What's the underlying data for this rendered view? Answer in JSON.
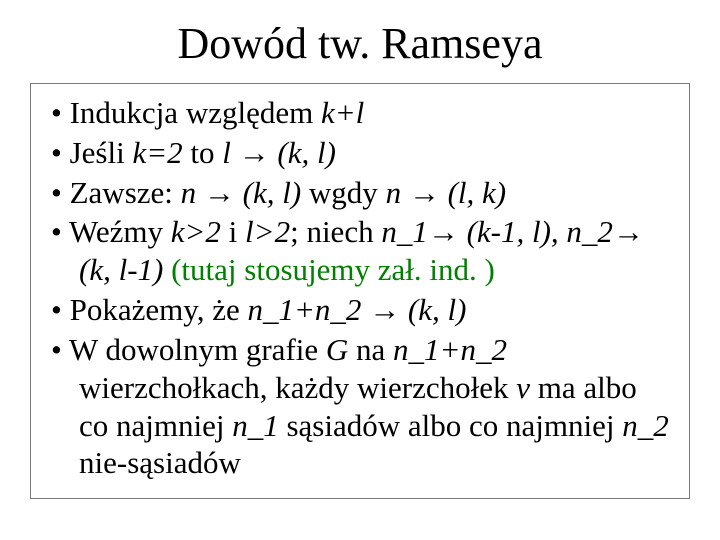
{
  "title": "Dowód tw. Ramseya",
  "text_color": "#000000",
  "green_color": "#008000",
  "border_color": "#7a7a7a",
  "background": "#ffffff",
  "title_fontsize": 44,
  "body_fontsize": 31,
  "bullets": {
    "b1": {
      "t1": "Indukcja względem ",
      "it1": "k+l"
    },
    "b2": {
      "t1": "Jeśli ",
      "it1": "k=2",
      "t2": " to ",
      "it2": "l ",
      "arrow": "→",
      "it3": " (k, l)"
    },
    "b3": {
      "t1": "Zawsze:  ",
      "it1": "n ",
      "arrow1": "→",
      "it2": " (k, l)",
      "t2": " wgdy ",
      "it3": "n ",
      "arrow2": "→",
      "it4": " (l, k)"
    },
    "b4": {
      "t1": "Weźmy ",
      "it1": "k>2",
      "t2": " i ",
      "it2": "l>2",
      "t3": "; niech ",
      "it3": "n_1",
      "arrow1": "→",
      "it4": " (k-1, l), n_2",
      "arrow2": "→",
      "it5": " (k, l-1)  ",
      "green": "(tutaj stosujemy zał. ind. )"
    },
    "b5": {
      "t1": "Pokażemy, że ",
      "it1": "n_1+n_2 ",
      "arrow": "→",
      "it2": " (k, l)"
    },
    "b6": {
      "t1": "W dowolnym grafie ",
      "it1": "G",
      "t2": " na ",
      "it2": "n_1+n_2",
      "t3": " wierzchołkach, każdy wierzchołek ",
      "it3": "v",
      "t4": " ma albo co najmniej ",
      "it4": "n_1",
      "t5": " sąsiadów albo co najmniej ",
      "it5": "n_2",
      "t6": " nie-sąsiadów"
    }
  }
}
